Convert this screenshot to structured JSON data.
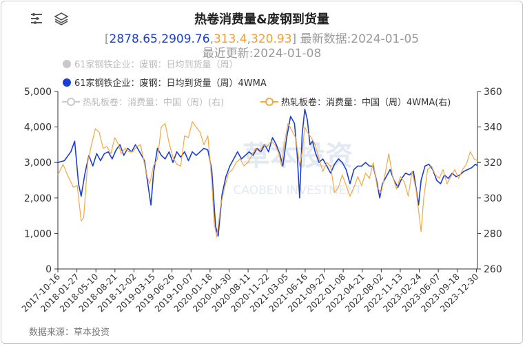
{
  "header": {
    "title": "热卷消费量&废钢到货量",
    "values_prefix": "[",
    "values": [
      {
        "text": "2878.65",
        "color": "#1a3fd6"
      },
      {
        "text": ",",
        "color": "#9a9a9a"
      },
      {
        "text": "2909.76",
        "color": "#1a3fd6"
      },
      {
        "text": ",",
        "color": "#9a9a9a"
      },
      {
        "text": "313.4",
        "color": "#f0a030"
      },
      {
        "text": ",",
        "color": "#9a9a9a"
      },
      {
        "text": "320.93",
        "color": "#f0a030"
      }
    ],
    "values_suffix": "] 最新数据:2024-01-05",
    "updated": "最近更新:2024-01-08"
  },
  "toolbar": {
    "filter_icon": "filter-lines-icon",
    "layers_icon": "layers-stack-icon"
  },
  "legend": [
    {
      "label": "61家钢铁企业：废钢：日均到货量（周）",
      "color": "#c8c8c8",
      "marker": "circle",
      "active": false
    },
    {
      "label": "61家钢铁企业：废钢：日均到货量（周）4WMA",
      "color": "#1a3fd6",
      "marker": "circle",
      "active": true
    },
    {
      "label": "热轧板卷：消费量：中国（周）(右)",
      "color": "#c8c8c8",
      "marker": "line-circle",
      "active": false
    },
    {
      "label": "热轧板卷：消费量：中国（周）4WMA(右)",
      "color": "#f5a742",
      "marker": "line-circle",
      "active": true
    }
  ],
  "source": "数据来源：草本投资",
  "watermark": {
    "main": "草本投资",
    "sub": "CAOBEN INVESTMENT"
  },
  "chart_data": {
    "type": "line",
    "x_tick_labels": [
      "2017-10-16",
      "2018-01-27",
      "2018-05-10",
      "2018-08-21",
      "2018-12-02",
      "2019-03-15",
      "2019-06-26",
      "2019-10-07",
      "2020-01-18",
      "2020-04-30",
      "2020-08-11",
      "2020-11-22",
      "2021-03-05",
      "2021-06-16",
      "2021-09-27",
      "2022-01-08",
      "2022-04-21",
      "2022-08-02",
      "2022-11-13",
      "2023-02-24",
      "2023-06-07",
      "2023-09-18",
      "2023-12-30"
    ],
    "x_range": [
      "2017-10-16",
      "2024-01-05"
    ],
    "y_left": {
      "ticks": [
        "0",
        "1,000",
        "2,000",
        "3,000",
        "4,000",
        "5,000"
      ],
      "min": 0,
      "max": 5000
    },
    "y_right": {
      "ticks": [
        "260",
        "280",
        "300",
        "320",
        "340",
        "360"
      ],
      "min": 260,
      "max": 360
    },
    "grid": false,
    "series": [
      {
        "name": "61家钢铁企业：废钢：日均到货量（周）4WMA",
        "axis": "left",
        "color": "#1a3fd6",
        "points": [
          [
            "2017-10-16",
            3000
          ],
          [
            "2017-11-20",
            3050
          ],
          [
            "2017-12-25",
            3300
          ],
          [
            "2018-01-15",
            3600
          ],
          [
            "2018-02-05",
            2400
          ],
          [
            "2018-02-19",
            2050
          ],
          [
            "2018-03-12",
            2700
          ],
          [
            "2018-04-02",
            3200
          ],
          [
            "2018-04-23",
            2900
          ],
          [
            "2018-05-14",
            3250
          ],
          [
            "2018-06-04",
            3050
          ],
          [
            "2018-06-25",
            3250
          ],
          [
            "2018-07-16",
            3300
          ],
          [
            "2018-08-06",
            3100
          ],
          [
            "2018-08-27",
            3350
          ],
          [
            "2018-09-17",
            3500
          ],
          [
            "2018-10-08",
            3200
          ],
          [
            "2018-10-29",
            3400
          ],
          [
            "2018-11-19",
            3300
          ],
          [
            "2018-12-10",
            3500
          ],
          [
            "2019-01-07",
            3250
          ],
          [
            "2019-01-28",
            3050
          ],
          [
            "2019-02-18",
            2300
          ],
          [
            "2019-03-04",
            1800
          ],
          [
            "2019-03-18",
            2700
          ],
          [
            "2019-04-08",
            3400
          ],
          [
            "2019-04-29",
            3200
          ],
          [
            "2019-05-20",
            3100
          ],
          [
            "2019-06-10",
            3300
          ],
          [
            "2019-07-01",
            3000
          ],
          [
            "2019-07-22",
            3300
          ],
          [
            "2019-08-12",
            3150
          ],
          [
            "2019-09-02",
            3300
          ],
          [
            "2019-09-23",
            3050
          ],
          [
            "2019-10-14",
            3300
          ],
          [
            "2019-11-04",
            3200
          ],
          [
            "2019-11-25",
            3300
          ],
          [
            "2019-12-16",
            3400
          ],
          [
            "2020-01-06",
            3350
          ],
          [
            "2020-01-27",
            2800
          ],
          [
            "2020-02-17",
            1200
          ],
          [
            "2020-03-02",
            930
          ],
          [
            "2020-03-23",
            2100
          ],
          [
            "2020-04-13",
            2600
          ],
          [
            "2020-05-04",
            2900
          ],
          [
            "2020-05-25",
            3100
          ],
          [
            "2020-06-15",
            3300
          ],
          [
            "2020-07-06",
            3100
          ],
          [
            "2020-07-27",
            3200
          ],
          [
            "2020-08-17",
            3300
          ],
          [
            "2020-09-07",
            3200
          ],
          [
            "2020-09-28",
            3400
          ],
          [
            "2020-10-19",
            3300
          ],
          [
            "2020-11-09",
            3500
          ],
          [
            "2020-11-30",
            3300
          ],
          [
            "2020-12-21",
            3700
          ],
          [
            "2021-01-11",
            3500
          ],
          [
            "2021-02-01",
            3200
          ],
          [
            "2021-02-15",
            2900
          ],
          [
            "2021-03-08",
            3700
          ],
          [
            "2021-03-29",
            4300
          ],
          [
            "2021-04-19",
            4100
          ],
          [
            "2021-05-03",
            3300
          ],
          [
            "2021-05-17",
            2000
          ],
          [
            "2021-05-31",
            3800
          ],
          [
            "2021-06-14",
            4500
          ],
          [
            "2021-06-28",
            4200
          ],
          [
            "2021-07-12",
            3500
          ],
          [
            "2021-07-26",
            3600
          ],
          [
            "2021-08-09",
            3300
          ],
          [
            "2021-08-30",
            3000
          ],
          [
            "2021-09-20",
            3100
          ],
          [
            "2021-10-11",
            2900
          ],
          [
            "2021-11-01",
            2700
          ],
          [
            "2021-11-22",
            2950
          ],
          [
            "2021-12-13",
            3100
          ],
          [
            "2022-01-03",
            3000
          ],
          [
            "2022-01-24",
            2800
          ],
          [
            "2022-02-14",
            2400
          ],
          [
            "2022-03-07",
            2800
          ],
          [
            "2022-03-28",
            2900
          ],
          [
            "2022-04-18",
            2900
          ],
          [
            "2022-05-09",
            3000
          ],
          [
            "2022-05-30",
            2900
          ],
          [
            "2022-06-20",
            2900
          ],
          [
            "2022-07-11",
            2400
          ],
          [
            "2022-07-25",
            2000
          ],
          [
            "2022-08-08",
            2400
          ],
          [
            "2022-08-29",
            2600
          ],
          [
            "2022-09-19",
            2800
          ],
          [
            "2022-10-10",
            2500
          ],
          [
            "2022-10-31",
            2300
          ],
          [
            "2022-11-21",
            2550
          ],
          [
            "2022-12-12",
            2700
          ],
          [
            "2023-01-02",
            2650
          ],
          [
            "2023-01-23",
            2750
          ],
          [
            "2023-02-06",
            2300
          ],
          [
            "2023-02-20",
            1800
          ],
          [
            "2023-03-06",
            2500
          ],
          [
            "2023-03-27",
            2900
          ],
          [
            "2023-04-17",
            2950
          ],
          [
            "2023-05-08",
            2800
          ],
          [
            "2023-05-29",
            2500
          ],
          [
            "2023-06-19",
            2400
          ],
          [
            "2023-07-10",
            2650
          ],
          [
            "2023-07-31",
            2550
          ],
          [
            "2023-08-21",
            2700
          ],
          [
            "2023-09-11",
            2600
          ],
          [
            "2023-10-02",
            2650
          ],
          [
            "2023-10-23",
            2750
          ],
          [
            "2023-11-13",
            2800
          ],
          [
            "2023-12-04",
            2850
          ],
          [
            "2023-12-25",
            2950
          ],
          [
            "2024-01-05",
            2910
          ]
        ]
      },
      {
        "name": "热轧板卷：消费量：中国（周）4WMA(右)",
        "axis": "right",
        "color": "#f5a742",
        "points": [
          [
            "2017-10-16",
            313
          ],
          [
            "2017-11-13",
            319
          ],
          [
            "2017-12-11",
            312
          ],
          [
            "2018-01-08",
            306
          ],
          [
            "2018-01-29",
            307
          ],
          [
            "2018-02-19",
            287
          ],
          [
            "2018-03-05",
            289
          ],
          [
            "2018-03-26",
            320
          ],
          [
            "2018-04-16",
            330
          ],
          [
            "2018-05-07",
            339
          ],
          [
            "2018-05-28",
            337
          ],
          [
            "2018-06-18",
            328
          ],
          [
            "2018-07-09",
            329
          ],
          [
            "2018-07-30",
            325
          ],
          [
            "2018-08-20",
            334
          ],
          [
            "2018-09-10",
            330
          ],
          [
            "2018-09-24",
            325
          ],
          [
            "2018-10-15",
            328
          ],
          [
            "2018-11-05",
            326
          ],
          [
            "2018-11-26",
            326
          ],
          [
            "2018-12-17",
            329
          ],
          [
            "2019-01-07",
            330
          ],
          [
            "2019-01-28",
            319
          ],
          [
            "2019-02-11",
            312
          ],
          [
            "2019-02-25",
            308
          ],
          [
            "2019-03-18",
            318
          ],
          [
            "2019-04-08",
            322
          ],
          [
            "2019-04-29",
            340
          ],
          [
            "2019-05-20",
            342
          ],
          [
            "2019-06-10",
            331
          ],
          [
            "2019-07-01",
            323
          ],
          [
            "2019-07-22",
            319
          ],
          [
            "2019-08-12",
            318
          ],
          [
            "2019-09-02",
            335
          ],
          [
            "2019-09-23",
            334
          ],
          [
            "2019-10-14",
            343
          ],
          [
            "2019-11-04",
            340
          ],
          [
            "2019-11-25",
            337
          ],
          [
            "2019-12-16",
            330
          ],
          [
            "2020-01-06",
            335
          ],
          [
            "2020-01-27",
            310
          ],
          [
            "2020-02-10",
            285
          ],
          [
            "2020-02-24",
            278
          ],
          [
            "2020-03-16",
            296
          ],
          [
            "2020-04-06",
            306
          ],
          [
            "2020-04-27",
            314
          ],
          [
            "2020-05-18",
            316
          ],
          [
            "2020-06-08",
            320
          ],
          [
            "2020-06-29",
            322
          ],
          [
            "2020-07-20",
            318
          ],
          [
            "2020-08-10",
            320
          ],
          [
            "2020-08-31",
            324
          ],
          [
            "2020-09-21",
            328
          ],
          [
            "2020-10-12",
            326
          ],
          [
            "2020-11-02",
            330
          ],
          [
            "2020-11-23",
            329
          ],
          [
            "2020-12-14",
            332
          ],
          [
            "2021-01-04",
            330
          ],
          [
            "2021-01-25",
            325
          ],
          [
            "2021-02-08",
            318
          ],
          [
            "2021-02-22",
            330
          ],
          [
            "2021-03-15",
            342
          ],
          [
            "2021-04-05",
            338
          ],
          [
            "2021-04-26",
            334
          ],
          [
            "2021-05-17",
            318
          ],
          [
            "2021-05-31",
            326
          ],
          [
            "2021-06-14",
            340
          ],
          [
            "2021-06-28",
            337
          ],
          [
            "2021-07-19",
            334
          ],
          [
            "2021-08-09",
            330
          ],
          [
            "2021-08-30",
            322
          ],
          [
            "2021-09-20",
            315
          ],
          [
            "2021-10-11",
            320
          ],
          [
            "2021-11-01",
            318
          ],
          [
            "2021-11-22",
            303
          ],
          [
            "2021-12-13",
            306
          ],
          [
            "2022-01-03",
            313
          ],
          [
            "2022-01-24",
            307
          ],
          [
            "2022-02-14",
            301
          ],
          [
            "2022-03-07",
            306
          ],
          [
            "2022-03-28",
            312
          ],
          [
            "2022-04-18",
            307
          ],
          [
            "2022-05-09",
            314
          ],
          [
            "2022-05-30",
            311
          ],
          [
            "2022-06-20",
            320
          ],
          [
            "2022-07-11",
            306
          ],
          [
            "2022-08-01",
            303
          ],
          [
            "2022-08-22",
            313
          ],
          [
            "2022-09-12",
            325
          ],
          [
            "2022-10-03",
            312
          ],
          [
            "2022-10-24",
            305
          ],
          [
            "2022-11-14",
            312
          ],
          [
            "2022-12-05",
            309
          ],
          [
            "2022-12-26",
            301
          ],
          [
            "2023-01-16",
            315
          ],
          [
            "2023-02-06",
            305
          ],
          [
            "2023-02-20",
            293
          ],
          [
            "2023-03-06",
            281
          ],
          [
            "2023-03-20",
            300
          ],
          [
            "2023-04-10",
            316
          ],
          [
            "2023-05-01",
            318
          ],
          [
            "2023-05-22",
            313
          ],
          [
            "2023-06-12",
            311
          ],
          [
            "2023-07-03",
            316
          ],
          [
            "2023-07-24",
            308
          ],
          [
            "2023-08-14",
            312
          ],
          [
            "2023-09-04",
            316
          ],
          [
            "2023-09-25",
            311
          ],
          [
            "2023-10-16",
            316
          ],
          [
            "2023-11-06",
            319
          ],
          [
            "2023-11-27",
            326
          ],
          [
            "2023-12-18",
            322
          ],
          [
            "2024-01-05",
            320.93
          ]
        ]
      }
    ]
  }
}
